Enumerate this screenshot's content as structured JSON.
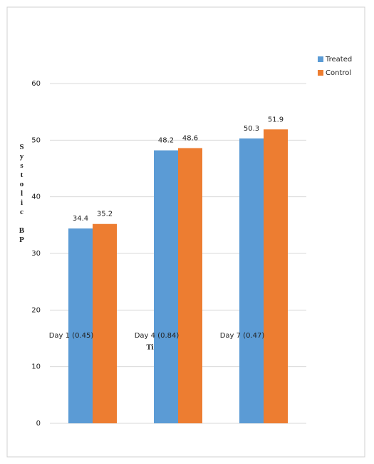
{
  "chart_data": {
    "type": "bar",
    "categories": [
      "Day 1 (0.45)",
      "Day 4 (0.84)",
      "Day 7 (0.47)"
    ],
    "series": [
      {
        "name": "Treated",
        "color": "#5b9bd5",
        "values": [
          34.4,
          48.2,
          50.3
        ]
      },
      {
        "name": "Control",
        "color": "#ed7d31",
        "values": [
          35.2,
          48.6,
          51.9
        ]
      }
    ],
    "ylim": [
      0,
      60
    ],
    "yticks": [
      0,
      10,
      20,
      30,
      40,
      50,
      60
    ],
    "y_label": "Systolic BP",
    "x_label": "Time (p-value)",
    "grid": true,
    "legend": "top-right"
  }
}
